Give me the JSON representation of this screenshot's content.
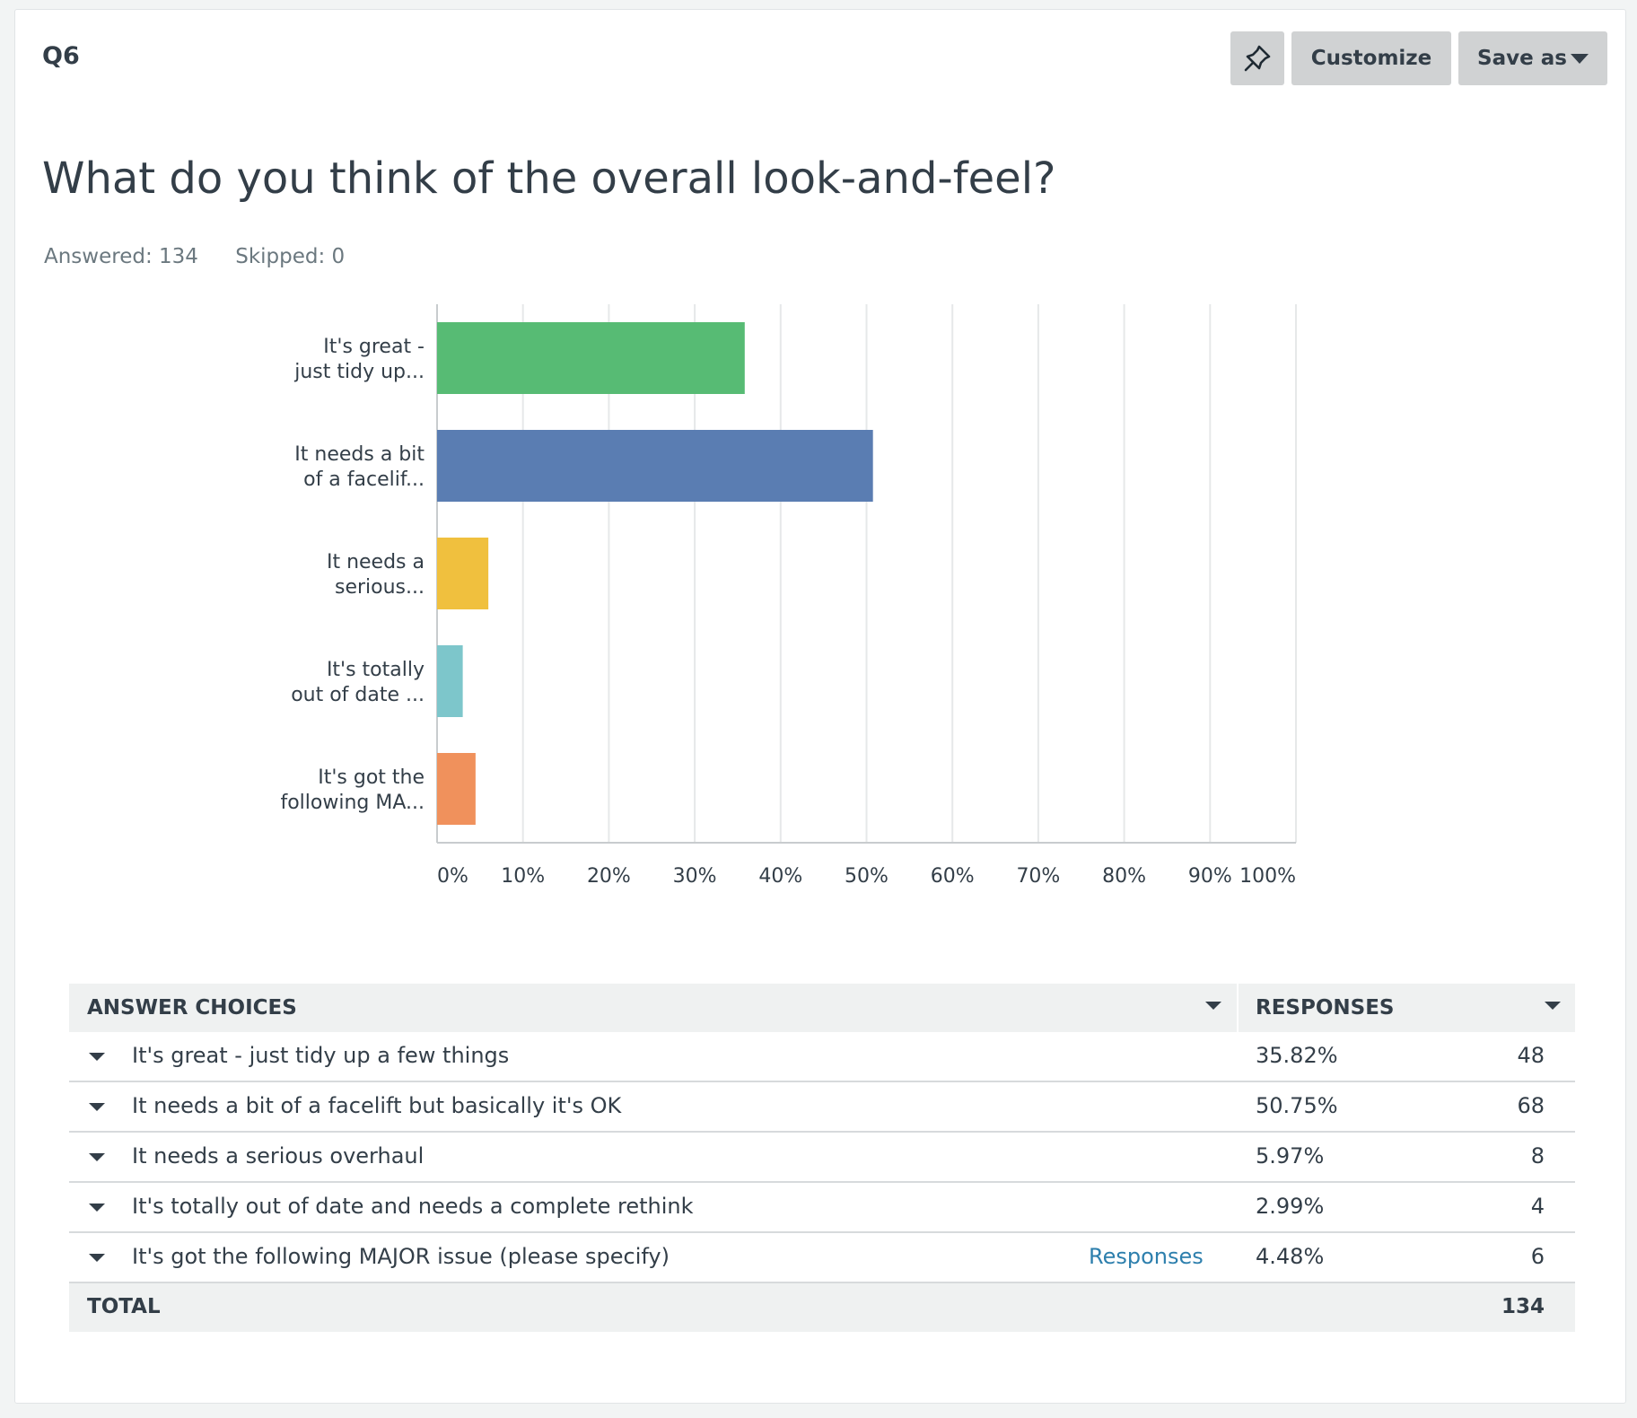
{
  "question": {
    "number": "Q6",
    "title": "What do you think of the overall look-and-feel?",
    "answered": "Answered: 134",
    "skipped": "Skipped: 0"
  },
  "toolbar": {
    "pin_icon": "pin-icon",
    "customize_label": "Customize",
    "save_as_label": "Save as"
  },
  "chart_data": {
    "type": "bar",
    "orientation": "horizontal",
    "categories": [
      [
        "It's great -",
        "just tidy up..."
      ],
      [
        "It needs a bit",
        "of a facelif..."
      ],
      [
        "It needs a",
        "serious..."
      ],
      [
        "It's totally",
        "out of date ..."
      ],
      [
        "It's got the",
        "following MA..."
      ]
    ],
    "values": [
      35.82,
      50.75,
      5.97,
      2.99,
      4.48
    ],
    "colors": [
      "#57bb74",
      "#5a7db2",
      "#f0c03e",
      "#7dc6cb",
      "#f0915c"
    ],
    "xlim": [
      0,
      100
    ],
    "xticks": [
      "0%",
      "10%",
      "20%",
      "30%",
      "40%",
      "50%",
      "60%",
      "70%",
      "80%",
      "90%",
      "100%"
    ],
    "grid": true
  },
  "table": {
    "headers": {
      "choices": "ANSWER CHOICES",
      "responses": "RESPONSES"
    },
    "rows": [
      {
        "label": "It's great - just tidy up a few things",
        "pct": "35.82%",
        "count": "48",
        "link": ""
      },
      {
        "label": "It needs a bit of a facelift but basically it's OK",
        "pct": "50.75%",
        "count": "68",
        "link": ""
      },
      {
        "label": "It needs a serious overhaul",
        "pct": "5.97%",
        "count": "8",
        "link": ""
      },
      {
        "label": "It's totally out of date and needs a complete rethink",
        "pct": "2.99%",
        "count": "4",
        "link": ""
      },
      {
        "label": "It's got the following MAJOR issue (please specify)",
        "pct": "4.48%",
        "count": "6",
        "link": "Responses"
      }
    ],
    "total_label": "TOTAL",
    "total_value": "134"
  }
}
